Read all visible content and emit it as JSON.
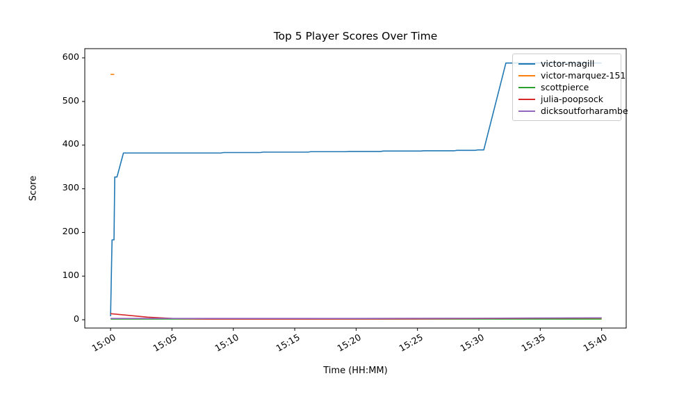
{
  "figure": {
    "title": "Top 5 Player Scores Over Time",
    "xlabel": "Time (HH:MM)",
    "ylabel": "Score",
    "background_color": "#ffffff",
    "axes_edge_color": "#000000",
    "legend_border_color": "#cccccc"
  },
  "chart_data": {
    "type": "line",
    "title": "Top 5 Player Scores Over Time",
    "xlabel": "Time (HH:MM)",
    "ylabel": "Score",
    "grid": false,
    "legend_position": "upper right",
    "x_unit": "minutes after 15:00",
    "xlim": [
      -2.1,
      42.0
    ],
    "ylim": [
      -19,
      621
    ],
    "x_tick_minutes": [
      0,
      5,
      10,
      15,
      20,
      25,
      30,
      35,
      40
    ],
    "x_tick_labels": [
      "15:00",
      "15:05",
      "15:10",
      "15:15",
      "15:20",
      "15:25",
      "15:30",
      "15:35",
      "15:40"
    ],
    "y_ticks": [
      0,
      100,
      200,
      300,
      400,
      500,
      600
    ],
    "y_tick_labels": [
      "0",
      "100",
      "200",
      "300",
      "400",
      "500",
      "600"
    ],
    "series": [
      {
        "name": "victor-magill",
        "color": "#1f77b4",
        "x": [
          0,
          0.12,
          0.28,
          0.34,
          0.52,
          0.6,
          1.05,
          9.0,
          9.2,
          12.2,
          12.4,
          16.1,
          16.3,
          19.2,
          19.4,
          22.0,
          22.2,
          25.3,
          25.5,
          28.0,
          28.2,
          29.7,
          29.9,
          30.4,
          32.2,
          40.0
        ],
        "y": [
          8,
          183,
          183,
          327,
          327,
          335,
          382,
          382,
          383,
          383,
          384,
          384,
          385,
          385,
          385.5,
          385.5,
          386.5,
          386.5,
          387,
          387,
          388,
          388,
          389,
          389,
          588,
          588
        ]
      },
      {
        "name": "victor-marquez-151",
        "color": "#ff7f0e",
        "x": [
          0.0,
          0.3
        ],
        "y": [
          562,
          562
        ]
      },
      {
        "name": "scottpierce",
        "color": "#2ca02c",
        "x": [
          0,
          40
        ],
        "y": [
          1.5,
          1.5
        ]
      },
      {
        "name": "julia-poopsock",
        "color": "#d62728",
        "x": [
          0,
          1.5,
          3,
          5,
          8,
          15,
          25,
          30,
          35,
          40
        ],
        "y": [
          14,
          10,
          6,
          3,
          1.5,
          1.5,
          2,
          3,
          3.5,
          4
        ]
      },
      {
        "name": "dicksoutforharambe",
        "color": "#9467bd",
        "x": [
          0,
          10,
          20,
          30,
          40
        ],
        "y": [
          3,
          3,
          3,
          3.5,
          4.5
        ]
      }
    ]
  }
}
